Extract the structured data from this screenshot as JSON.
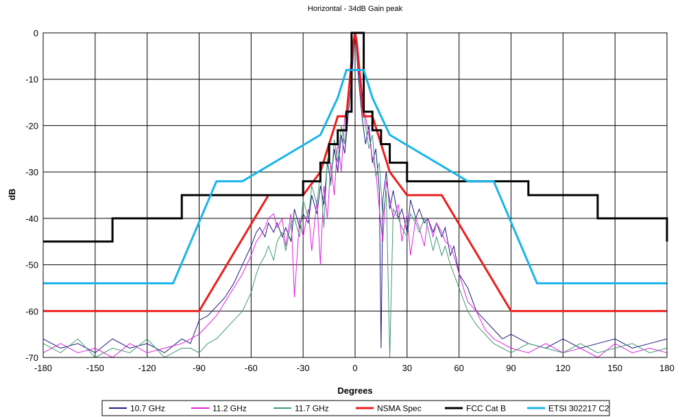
{
  "chart_data": {
    "type": "line",
    "title": "Horizontal - 34dB Gain peak",
    "xlabel": "Degrees",
    "ylabel": "dB",
    "xlim": [
      -180,
      180
    ],
    "ylim": [
      -70,
      0
    ],
    "xticks": [
      -180,
      -150,
      -120,
      -90,
      -60,
      -30,
      0,
      30,
      60,
      90,
      120,
      150,
      180
    ],
    "yticks": [
      0,
      -10,
      -20,
      -30,
      -40,
      -50,
      -60,
      -70
    ],
    "grid": true,
    "legend_position": "bottom",
    "series": [
      {
        "name": "10.7 GHz",
        "color": "#1a1a80",
        "width": 1,
        "x": [
          -180,
          -170,
          -160,
          -150,
          -140,
          -130,
          -120,
          -110,
          -100,
          -95,
          -90,
          -85,
          -80,
          -75,
          -70,
          -65,
          -60,
          -57,
          -55,
          -52,
          -50,
          -47,
          -45,
          -42,
          -40,
          -37,
          -35,
          -32,
          -30,
          -27,
          -25,
          -22,
          -20,
          -18,
          -16,
          -14,
          -12,
          -10,
          -8,
          -6,
          -4,
          -2,
          0,
          2,
          4,
          6,
          8,
          10,
          12,
          14,
          15,
          16,
          18,
          20,
          22,
          25,
          27,
          30,
          32,
          35,
          37,
          40,
          42,
          45,
          47,
          50,
          52,
          55,
          57,
          60,
          65,
          70,
          75,
          80,
          85,
          90,
          100,
          110,
          120,
          130,
          140,
          150,
          160,
          170,
          180
        ],
        "y": [
          -66,
          -68,
          -67,
          -69,
          -66,
          -68,
          -67,
          -69,
          -66,
          -67,
          -62,
          -61,
          -59,
          -57,
          -54,
          -50,
          -46,
          -43,
          -42,
          -44,
          -41,
          -43,
          -41,
          -44,
          -42,
          -45,
          -38,
          -42,
          -39,
          -41,
          -35,
          -39,
          -33,
          -37,
          -28,
          -32,
          -25,
          -30,
          -22,
          -26,
          -18,
          -10,
          0,
          -10,
          -18,
          -24,
          -20,
          -28,
          -25,
          -34,
          -68,
          -36,
          -30,
          -38,
          -34,
          -40,
          -38,
          -43,
          -36,
          -40,
          -38,
          -41,
          -40,
          -43,
          -41,
          -44,
          -42,
          -48,
          -46,
          -52,
          -55,
          -60,
          -62,
          -64,
          -66,
          -65,
          -67,
          -68,
          -66,
          -68,
          -67,
          -66,
          -68,
          -67,
          -66
        ]
      },
      {
        "name": "11.2 GHz",
        "color": "#e020e0",
        "width": 1,
        "x": [
          -180,
          -170,
          -160,
          -150,
          -140,
          -130,
          -120,
          -110,
          -100,
          -95,
          -90,
          -85,
          -80,
          -75,
          -70,
          -65,
          -60,
          -57,
          -55,
          -52,
          -50,
          -47,
          -45,
          -42,
          -40,
          -37,
          -35,
          -32,
          -30,
          -27,
          -25,
          -22,
          -20,
          -18,
          -16,
          -14,
          -12,
          -10,
          -8,
          -6,
          -4,
          -2,
          0,
          2,
          4,
          6,
          8,
          10,
          12,
          14,
          16,
          18,
          20,
          22,
          25,
          27,
          30,
          32,
          35,
          37,
          40,
          42,
          45,
          47,
          50,
          52,
          55,
          57,
          60,
          65,
          70,
          75,
          80,
          85,
          90,
          100,
          110,
          120,
          130,
          140,
          150,
          160,
          170,
          180
        ],
        "y": [
          -69,
          -67,
          -69,
          -68,
          -70,
          -67,
          -69,
          -68,
          -67,
          -66,
          -65,
          -63,
          -61,
          -58,
          -55,
          -52,
          -48,
          -45,
          -44,
          -42,
          -40,
          -39,
          -42,
          -40,
          -46,
          -39,
          -57,
          -40,
          -44,
          -38,
          -47,
          -36,
          -50,
          -33,
          -40,
          -28,
          -35,
          -23,
          -30,
          -18,
          -15,
          -8,
          0,
          -8,
          -16,
          -18,
          -22,
          -27,
          -30,
          -38,
          -45,
          -32,
          -36,
          -40,
          -37,
          -45,
          -39,
          -48,
          -40,
          -42,
          -46,
          -40,
          -44,
          -41,
          -43,
          -45,
          -46,
          -48,
          -52,
          -58,
          -60,
          -64,
          -66,
          -67,
          -68,
          -69,
          -67,
          -69,
          -68,
          -70,
          -67,
          -69,
          -68,
          -69
        ]
      },
      {
        "name": "11.7 GHz",
        "color": "#3c9a6e",
        "width": 1,
        "x": [
          -180,
          -170,
          -160,
          -150,
          -140,
          -130,
          -120,
          -110,
          -100,
          -95,
          -90,
          -85,
          -80,
          -75,
          -70,
          -65,
          -60,
          -57,
          -55,
          -52,
          -50,
          -47,
          -45,
          -42,
          -40,
          -37,
          -35,
          -32,
          -30,
          -27,
          -25,
          -22,
          -20,
          -18,
          -16,
          -14,
          -12,
          -10,
          -8,
          -6,
          -4,
          -2,
          0,
          2,
          4,
          6,
          8,
          10,
          12,
          14,
          16,
          18,
          20,
          22,
          25,
          27,
          30,
          32,
          35,
          37,
          40,
          42,
          45,
          47,
          50,
          52,
          55,
          57,
          60,
          65,
          70,
          75,
          80,
          85,
          90,
          100,
          110,
          120,
          130,
          140,
          150,
          160,
          170,
          180
        ],
        "y": [
          -67,
          -69,
          -66,
          -70,
          -68,
          -69,
          -66,
          -70,
          -68,
          -68,
          -69,
          -67,
          -66,
          -64,
          -62,
          -60,
          -56,
          -52,
          -50,
          -48,
          -46,
          -49,
          -45,
          -43,
          -47,
          -41,
          -40,
          -44,
          -36,
          -40,
          -33,
          -37,
          -30,
          -42,
          -27,
          -33,
          -23,
          -28,
          -20,
          -24,
          -14,
          -8,
          0,
          -8,
          -14,
          -20,
          -25,
          -22,
          -31,
          -28,
          -40,
          -34,
          -70,
          -38,
          -40,
          -42,
          -44,
          -39,
          -41,
          -43,
          -40,
          -42,
          -47,
          -44,
          -48,
          -46,
          -50,
          -52,
          -55,
          -60,
          -63,
          -65,
          -67,
          -68,
          -69,
          -67,
          -68,
          -69,
          -67,
          -69,
          -68,
          -67,
          -69,
          -68
        ]
      },
      {
        "name": "NSMA Spec",
        "color": "#ee1c1c",
        "width": 3,
        "x": [
          -180,
          -90,
          -50,
          -30,
          -20,
          -10,
          -5,
          -3,
          -1,
          0,
          1,
          3,
          5,
          10,
          20,
          30,
          50,
          90,
          180
        ],
        "y": [
          -60,
          -60,
          -35,
          -35,
          -30,
          -18,
          -18,
          -10,
          -2,
          0,
          -2,
          -10,
          -18,
          -18,
          -30,
          -35,
          -35,
          -60,
          -60
        ],
        "shape": "linear"
      },
      {
        "name": "FCC Cat B",
        "color": "#000000",
        "width": 3,
        "x": [
          -180,
          -140,
          -100,
          -30,
          -20,
          -15,
          -10,
          -5,
          -2,
          2,
          5,
          10,
          15,
          20,
          30,
          100,
          140,
          180
        ],
        "y": [
          -45,
          -40,
          -35,
          -32,
          -28,
          -24,
          -21,
          -17,
          0,
          0,
          -17,
          -21,
          -24,
          -28,
          -32,
          -35,
          -40,
          -45
        ],
        "shape": "step"
      },
      {
        "name": "ETSI 302217 C2",
        "color": "#16b4ea",
        "width": 3,
        "x": [
          -180,
          -105,
          -80,
          -65,
          -20,
          -10,
          -5,
          5,
          10,
          20,
          65,
          80,
          105,
          180
        ],
        "y": [
          -54,
          -54,
          -32,
          -32,
          -22,
          -14,
          -8,
          -8,
          -14,
          -22,
          -32,
          -32,
          -54,
          -54
        ],
        "shape": "linear"
      }
    ]
  }
}
